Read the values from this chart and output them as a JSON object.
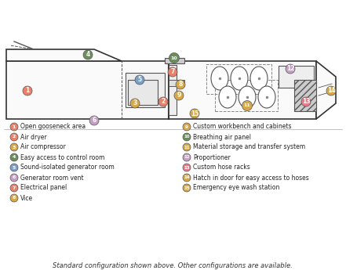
{
  "legend_left": [
    {
      "num": "1",
      "text": "Open gooseneck area",
      "color": "#E8826A"
    },
    {
      "num": "2",
      "text": "Air dryer",
      "color": "#E8826A"
    },
    {
      "num": "3",
      "text": "Air compressor",
      "color": "#D4A84B"
    },
    {
      "num": "4",
      "text": "Easy access to control room",
      "color": "#6B8E5A"
    },
    {
      "num": "5",
      "text": "Sound-isolated generator room",
      "color": "#7B9EC4"
    },
    {
      "num": "6",
      "text": "Generator room vent",
      "color": "#C4A0C4"
    },
    {
      "num": "7",
      "text": "Electrical panel",
      "color": "#E8826A"
    },
    {
      "num": "8",
      "text": "Vice",
      "color": "#D4A84B"
    }
  ],
  "legend_right": [
    {
      "num": "9",
      "text": "Custom workbench and cabinets",
      "color": "#D4A84B"
    },
    {
      "num": "10",
      "text": "Breathing air panel",
      "color": "#6B8E5A"
    },
    {
      "num": "11",
      "text": "Material storage and transfer system",
      "color": "#D4A84B"
    },
    {
      "num": "12",
      "text": "Proportioner",
      "color": "#C4A0C4"
    },
    {
      "num": "13",
      "text": "Custom hose racks",
      "color": "#E87A8A"
    },
    {
      "num": "14",
      "text": "Hatch in door for easy access to hoses",
      "color": "#D4A84B"
    },
    {
      "num": "15",
      "text": "Emergency eye wash station",
      "color": "#D4A84B"
    }
  ],
  "footer": "Standard configuration shown above. Other configurations are available.",
  "bg_color": "#FFFFFF"
}
